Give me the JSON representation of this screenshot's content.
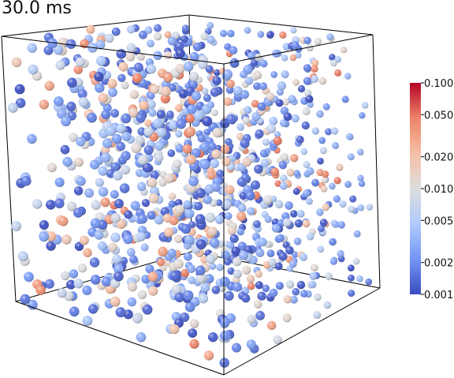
{
  "time_label": "30.0 ms",
  "colorbar": {
    "scale": "log",
    "range": [
      0.001,
      0.1
    ],
    "tick_labels": [
      "0.100",
      "0.050",
      "0.020",
      "0.010",
      "0.005",
      "0.002",
      "0.001"
    ],
    "tick_values": [
      0.1,
      0.05,
      0.02,
      0.01,
      0.005,
      0.002,
      0.001
    ],
    "colormap": [
      "#3b4cc0",
      "#7396f5",
      "#b0cbfc",
      "#dddddd",
      "#f6bfa6",
      "#ee8468",
      "#b40426"
    ]
  },
  "particle_colors": {
    "low": "#3b4cc0",
    "mid": "#dddddd",
    "high": "#b40426"
  },
  "frame_color": "#000000"
}
